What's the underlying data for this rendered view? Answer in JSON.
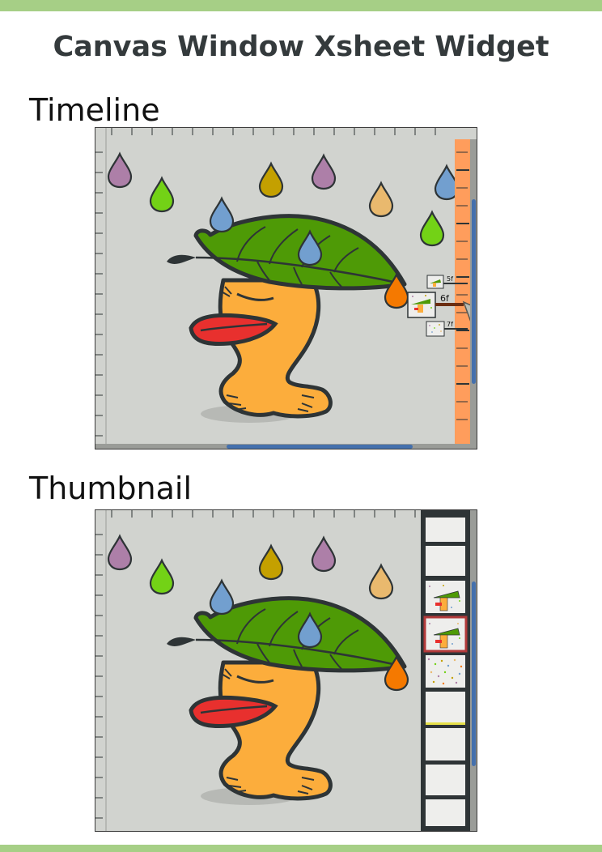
{
  "page": {
    "title": "Canvas Window Xsheet Widget",
    "accent_band_color": "#a6cf86"
  },
  "sections": {
    "timeline": {
      "label": "Timeline",
      "widget_color": "#ff9d5c",
      "frames": [
        {
          "label": "5f",
          "current": false
        },
        {
          "label": "6f",
          "current": true
        },
        {
          "label": "7f",
          "current": false
        }
      ]
    },
    "thumbnail": {
      "label": "Thumbnail",
      "current_cell_color": "#b23a3a",
      "keyframe_marker_color": "#e6e04a"
    }
  },
  "canvas": {
    "background": "#d1d3cf",
    "scrollbar_color": "#4470ad",
    "character_colors": {
      "body": "#fcad3c",
      "lips": "#e8302e",
      "leaf": "#4e9a06",
      "outline": "#2e3436"
    },
    "drops": [
      "purple-drop",
      "green-drop",
      "olive-drop",
      "tan-drop",
      "blue-drop",
      "orange-drop"
    ]
  }
}
